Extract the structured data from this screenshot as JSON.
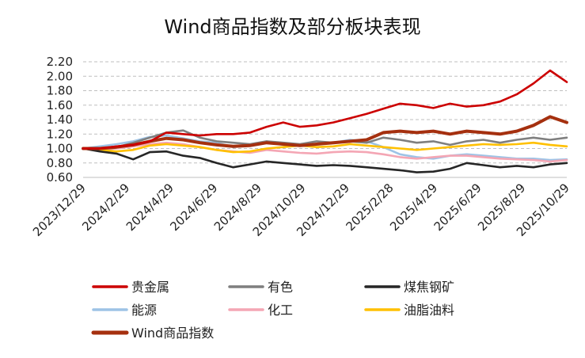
{
  "chart_data": {
    "type": "line",
    "title": "Wind商品指数及部分板块表现",
    "xlabel": "",
    "ylabel": "",
    "ylim": [
      0.6,
      2.2
    ],
    "yticks": [
      "2.20",
      "2.00",
      "1.80",
      "1.60",
      "1.40",
      "1.20",
      "1.00",
      "0.80",
      "0.60"
    ],
    "xticks": [
      "2023/12/29",
      "2024/2/29",
      "2024/4/29",
      "2024/6/29",
      "2024/8/29",
      "2024/10/29",
      "2024/12/29",
      "2025/2/28",
      "2025/4/29",
      "2025/6/29",
      "2025/8/29",
      "2025/10/29"
    ],
    "grid": "horizontal dashed",
    "legend_position": "bottom",
    "series": [
      {
        "name": "贵金属",
        "color": "#cc0000",
        "values": [
          1.0,
          1.0,
          1.03,
          1.05,
          1.1,
          1.22,
          1.2,
          1.18,
          1.2,
          1.2,
          1.22,
          1.3,
          1.36,
          1.3,
          1.32,
          1.36,
          1.42,
          1.48,
          1.55,
          1.62,
          1.6,
          1.56,
          1.62,
          1.58,
          1.6,
          1.65,
          1.75,
          1.9,
          2.08,
          1.92
        ]
      },
      {
        "name": "有色",
        "color": "#7f7f7f",
        "values": [
          1.0,
          1.0,
          1.02,
          1.08,
          1.15,
          1.22,
          1.25,
          1.15,
          1.1,
          1.08,
          1.06,
          1.1,
          1.08,
          1.06,
          1.1,
          1.08,
          1.1,
          1.08,
          1.15,
          1.12,
          1.08,
          1.1,
          1.05,
          1.1,
          1.12,
          1.08,
          1.12,
          1.15,
          1.12,
          1.15
        ]
      },
      {
        "name": "煤焦钢矿",
        "color": "#262626",
        "values": [
          1.0,
          0.96,
          0.93,
          0.85,
          0.95,
          0.96,
          0.9,
          0.87,
          0.8,
          0.74,
          0.78,
          0.82,
          0.8,
          0.78,
          0.76,
          0.77,
          0.76,
          0.74,
          0.72,
          0.7,
          0.67,
          0.68,
          0.72,
          0.8,
          0.77,
          0.74,
          0.76,
          0.74,
          0.78,
          0.8
        ]
      },
      {
        "name": "能源",
        "color": "#9dc3e6",
        "values": [
          1.0,
          1.03,
          1.06,
          1.1,
          1.16,
          1.18,
          1.14,
          1.1,
          1.08,
          1.02,
          1.04,
          1.1,
          1.05,
          1.04,
          1.06,
          1.08,
          1.12,
          1.1,
          1.02,
          0.92,
          0.88,
          0.86,
          0.9,
          0.92,
          0.9,
          0.88,
          0.86,
          0.86,
          0.84,
          0.85
        ]
      },
      {
        "name": "化工",
        "color": "#f4a6b4",
        "values": [
          1.0,
          0.98,
          1.0,
          1.03,
          1.06,
          1.08,
          1.06,
          1.02,
          0.98,
          0.96,
          0.94,
          0.98,
          0.96,
          0.94,
          0.93,
          0.95,
          0.96,
          0.95,
          0.92,
          0.88,
          0.86,
          0.88,
          0.9,
          0.9,
          0.88,
          0.86,
          0.85,
          0.84,
          0.82,
          0.84
        ]
      },
      {
        "name": "油脂油料",
        "color": "#ffc000",
        "values": [
          1.0,
          0.98,
          0.96,
          0.98,
          1.04,
          1.06,
          1.04,
          1.02,
          0.98,
          0.95,
          0.96,
          1.0,
          1.02,
          1.04,
          1.02,
          1.03,
          1.06,
          1.04,
          1.02,
          1.0,
          0.98,
          1.0,
          1.02,
          1.04,
          1.06,
          1.05,
          1.06,
          1.08,
          1.05,
          1.03
        ]
      },
      {
        "name": "Wind商品指数",
        "color": "#a5300f",
        "bold": true,
        "values": [
          1.0,
          1.0,
          1.02,
          1.05,
          1.1,
          1.14,
          1.12,
          1.08,
          1.05,
          1.03,
          1.04,
          1.08,
          1.06,
          1.04,
          1.06,
          1.08,
          1.1,
          1.12,
          1.22,
          1.24,
          1.22,
          1.24,
          1.2,
          1.24,
          1.22,
          1.2,
          1.24,
          1.32,
          1.44,
          1.36
        ]
      }
    ]
  }
}
